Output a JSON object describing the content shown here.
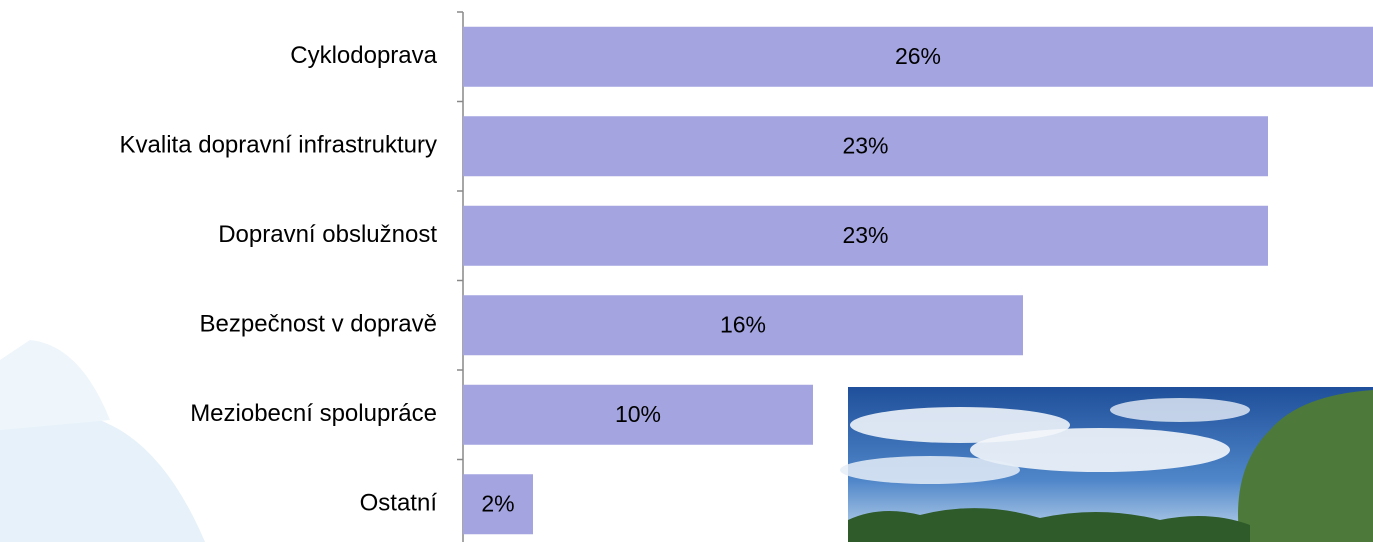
{
  "chart_data": {
    "type": "bar",
    "categories": [
      "Cyklodoprava",
      "Kvalita dopravní infrastruktury",
      "Dopravní obslužnost",
      "Bezpečnost v dopravě",
      "Meziobecní spolupráce",
      "Ostatní"
    ],
    "values": [
      26,
      23,
      23,
      16,
      10,
      2
    ],
    "value_labels": [
      "26%",
      "23%",
      "23%",
      "16%",
      "10%",
      "2%"
    ],
    "color": "#a4a4e0"
  }
}
